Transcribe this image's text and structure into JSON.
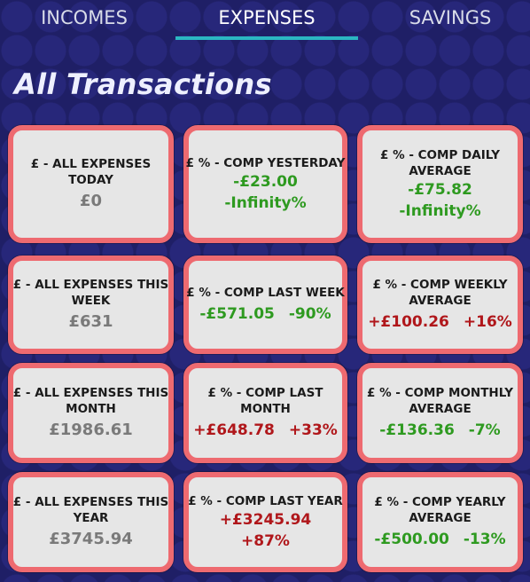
{
  "tabs": {
    "incomes": "INCOMES",
    "expenses": "EXPENSES",
    "savings": "SAVINGS",
    "active": "EXPENSES"
  },
  "page_title": "All Transactions",
  "colors": {
    "background": "#1f1f66",
    "card_border": "#ee6a70",
    "card_fill": "#e6e6e6",
    "positive": "#2e9a20",
    "negative": "#b0171b",
    "tab_indicator": "#2bb7c2"
  },
  "cards": {
    "today": {
      "line1": "£ - ALL EXPENSES",
      "line2": "TODAY",
      "amount": "£0"
    },
    "yesterday": {
      "line1": "£ % - COMP YESTERDAY",
      "amount": "-£23.00",
      "percent": "-Infinity%"
    },
    "daily_avg": {
      "line1": "£ % - COMP DAILY",
      "line2": "AVERAGE",
      "amount": "-£75.82",
      "percent": "-Infinity%"
    },
    "this_week": {
      "line1": "£ - ALL EXPENSES THIS",
      "line2": "WEEK",
      "amount": "£631"
    },
    "last_week": {
      "line1": "£ % - COMP LAST WEEK",
      "amount": "-£571.05",
      "percent": "-90%"
    },
    "weekly_avg": {
      "line1": "£ % - COMP WEEKLY",
      "line2": "AVERAGE",
      "amount": "+£100.26",
      "percent": "+16%"
    },
    "this_month": {
      "line1": "£ - ALL EXPENSES THIS",
      "line2": "MONTH",
      "amount": "£1986.61"
    },
    "last_month": {
      "line1": "£ % - COMP LAST",
      "line2": "MONTH",
      "amount": "+£648.78",
      "percent": "+33%"
    },
    "monthly_avg": {
      "line1": "£ % - COMP MONTHLY",
      "line2": "AVERAGE",
      "amount": "-£136.36",
      "percent": "-7%"
    },
    "this_year": {
      "line1": "£ - ALL EXPENSES THIS",
      "line2": "YEAR",
      "amount": "£3745.94"
    },
    "last_year": {
      "line1": "£ % - COMP LAST YEAR",
      "amount": "+£3245.94",
      "percent": "+87%"
    },
    "yearly_avg": {
      "line1": "£ % - COMP YEARLY",
      "line2": "AVERAGE",
      "amount": "-£500.00",
      "percent": "-13%"
    }
  }
}
